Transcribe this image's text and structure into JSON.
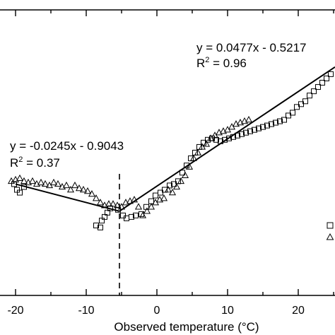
{
  "chart_data": {
    "type": "scatter",
    "xlabel": "Observed temperature (°C)",
    "xlim": [
      -22.2,
      25.2
    ],
    "ylim": [
      0,
      1
    ],
    "x_ticks": [
      -20,
      -10,
      0,
      10,
      20
    ],
    "breakpoint_x": -5.3,
    "series": [
      {
        "marker": "square",
        "points": [
          [
            -20.2,
            0.39
          ],
          [
            -19.8,
            0.37
          ],
          [
            -19.4,
            0.36
          ],
          [
            -18.8,
            0.38
          ],
          [
            -8.6,
            0.245
          ],
          [
            -8.0,
            0.238
          ],
          [
            -7.8,
            0.262
          ],
          [
            -7.4,
            0.275
          ],
          [
            -7.0,
            0.29
          ],
          [
            -6.6,
            0.305
          ],
          [
            -5.5,
            0.3
          ],
          [
            -4.8,
            0.28
          ],
          [
            -4.3,
            0.27
          ],
          [
            -3.6,
            0.275
          ],
          [
            -3.0,
            0.28
          ],
          [
            -2.2,
            0.285
          ],
          [
            -1.5,
            0.31
          ],
          [
            -0.8,
            0.33
          ],
          [
            -0.2,
            0.35
          ],
          [
            0.5,
            0.36
          ],
          [
            1.1,
            0.37
          ],
          [
            1.8,
            0.385
          ],
          [
            2.4,
            0.39
          ],
          [
            3.0,
            0.4
          ],
          [
            3.6,
            0.43
          ],
          [
            4.2,
            0.455
          ],
          [
            4.8,
            0.48
          ],
          [
            5.4,
            0.5
          ],
          [
            6.0,
            0.52
          ],
          [
            6.6,
            0.535
          ],
          [
            7.2,
            0.545
          ],
          [
            7.8,
            0.55
          ],
          [
            8.4,
            0.545
          ],
          [
            9.0,
            0.54
          ],
          [
            9.6,
            0.545
          ],
          [
            10.2,
            0.55
          ],
          [
            10.8,
            0.555
          ],
          [
            11.4,
            0.56
          ],
          [
            12.0,
            0.565
          ],
          [
            12.6,
            0.57
          ],
          [
            13.2,
            0.575
          ],
          [
            13.8,
            0.58
          ],
          [
            14.4,
            0.585
          ],
          [
            15.0,
            0.59
          ],
          [
            15.6,
            0.595
          ],
          [
            16.2,
            0.6
          ],
          [
            16.8,
            0.605
          ],
          [
            17.4,
            0.61
          ],
          [
            18.0,
            0.615
          ],
          [
            18.6,
            0.63
          ],
          [
            19.2,
            0.64
          ],
          [
            19.8,
            0.66
          ],
          [
            20.4,
            0.67
          ],
          [
            21.0,
            0.68
          ],
          [
            21.6,
            0.7
          ],
          [
            22.2,
            0.715
          ],
          [
            22.8,
            0.73
          ],
          [
            23.4,
            0.745
          ],
          [
            24.0,
            0.76
          ],
          [
            24.6,
            0.775
          ]
        ]
      },
      {
        "marker": "triangle",
        "points": [
          [
            -20.6,
            0.4
          ],
          [
            -20.0,
            0.405
          ],
          [
            -19.4,
            0.41
          ],
          [
            -18.8,
            0.4
          ],
          [
            -18.2,
            0.395
          ],
          [
            -17.6,
            0.4
          ],
          [
            -17.0,
            0.39
          ],
          [
            -16.4,
            0.395
          ],
          [
            -15.8,
            0.39
          ],
          [
            -15.2,
            0.385
          ],
          [
            -14.6,
            0.395
          ],
          [
            -14.0,
            0.39
          ],
          [
            -13.4,
            0.38
          ],
          [
            -12.8,
            0.385
          ],
          [
            -12.2,
            0.37
          ],
          [
            -11.6,
            0.385
          ],
          [
            -11.0,
            0.375
          ],
          [
            -10.4,
            0.37
          ],
          [
            -9.8,
            0.365
          ],
          [
            -9.2,
            0.355
          ],
          [
            -8.6,
            0.34
          ],
          [
            -8.0,
            0.325
          ],
          [
            -7.4,
            0.315
          ],
          [
            -6.8,
            0.32
          ],
          [
            -6.2,
            0.32
          ],
          [
            -5.6,
            0.315
          ],
          [
            -5.0,
            0.31
          ],
          [
            -4.4,
            0.325
          ],
          [
            -3.8,
            0.33
          ],
          [
            -3.2,
            0.335
          ],
          [
            -2.6,
            0.31
          ],
          [
            -2.0,
            0.28
          ],
          [
            -1.4,
            0.295
          ],
          [
            -0.8,
            0.31
          ],
          [
            -0.2,
            0.325
          ],
          [
            0.4,
            0.335
          ],
          [
            1.0,
            0.34
          ],
          [
            1.6,
            0.37
          ],
          [
            2.2,
            0.36
          ],
          [
            2.8,
            0.38
          ],
          [
            3.4,
            0.4
          ],
          [
            4.0,
            0.42
          ],
          [
            4.6,
            0.45
          ],
          [
            5.2,
            0.48
          ],
          [
            5.8,
            0.5
          ],
          [
            6.4,
            0.52
          ],
          [
            7.0,
            0.53
          ],
          [
            7.6,
            0.55
          ],
          [
            8.2,
            0.56
          ],
          [
            8.8,
            0.57
          ],
          [
            9.4,
            0.575
          ],
          [
            10.0,
            0.58
          ],
          [
            10.6,
            0.59
          ],
          [
            11.2,
            0.6
          ],
          [
            11.8,
            0.605
          ],
          [
            12.4,
            0.61
          ],
          [
            13.0,
            0.615
          ]
        ]
      }
    ],
    "fit_lines": [
      {
        "equation": "y = -0.0245x - 0.9043",
        "r2_label": "R",
        "r2_sup": "2",
        "r2_value": " = 0.37",
        "segment": [
          [
            -20.0,
            0.39
          ],
          [
            -5.3,
            0.295
          ]
        ]
      },
      {
        "equation": "y = 0.0477x - 0.5217",
        "r2_label": "R",
        "r2_sup": "2",
        "r2_value": " = 0.96",
        "segment": [
          [
            -5.3,
            0.295
          ],
          [
            25.2,
            0.8
          ]
        ]
      }
    ]
  }
}
